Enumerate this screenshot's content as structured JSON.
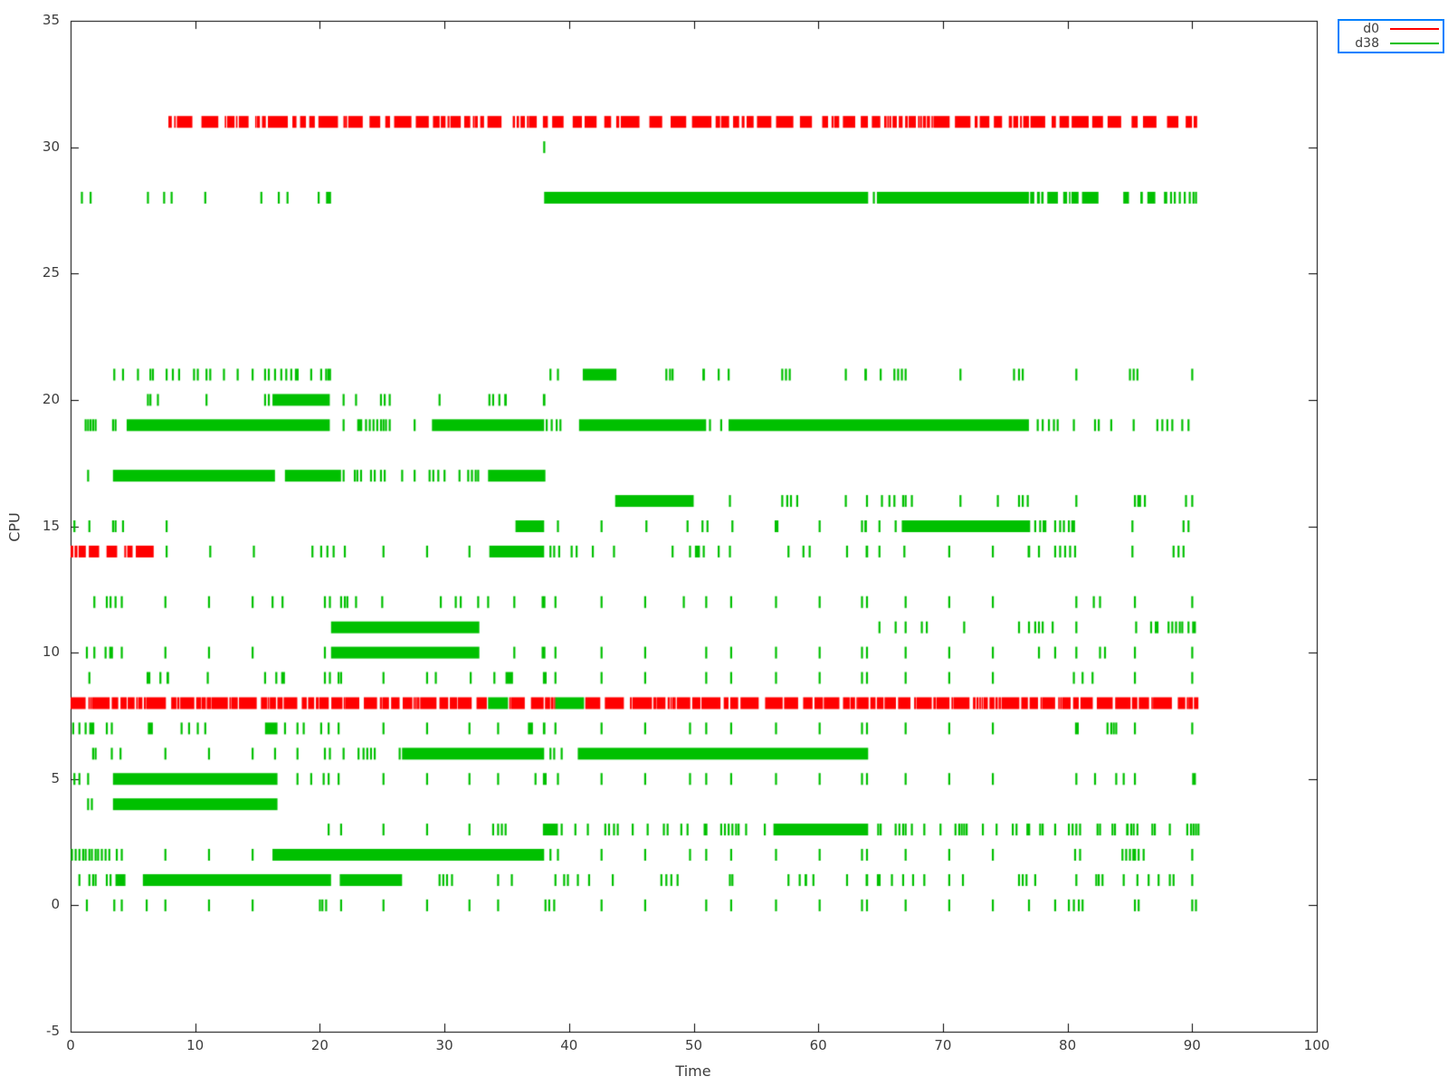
{
  "chart_data": {
    "type": "scatter",
    "marker": "vertical-interval-ticks",
    "title": "",
    "xlabel": "Time",
    "ylabel": "CPU",
    "xlim": [
      0,
      100
    ],
    "ylim": [
      -5,
      35
    ],
    "xticks": [
      0,
      10,
      20,
      30,
      40,
      50,
      60,
      70,
      80,
      90,
      100
    ],
    "yticks": [
      -5,
      0,
      5,
      10,
      15,
      20,
      25,
      30,
      35
    ],
    "grid": false,
    "legend_position": "outside-top-right",
    "legend_border_color": "#0080ff",
    "axis_color": "#000000",
    "series": [
      {
        "name": "d0",
        "color": "#ff0000"
      },
      {
        "name": "d38",
        "color": "#00c000"
      }
    ],
    "rows": [
      {
        "cpu": 31,
        "series": "d0",
        "dense": [
          [
            7.85,
            90.4,
            0.65
          ]
        ]
      },
      {
        "cpu": 30,
        "series": "d38",
        "ticks": [
          38.0
        ]
      },
      {
        "cpu": 28,
        "series": "d38",
        "ticks": [
          0.9,
          1.6,
          6.2,
          7.5,
          8.1,
          10.8,
          15.3,
          16.7,
          17.4,
          19.9,
          [
            20.5,
            20.9
          ],
          64.45,
          88.3,
          88.6,
          89.0,
          89.4,
          89.8,
          90.1,
          90.3
        ],
        "solid": [
          [
            38.0,
            64.0
          ],
          [
            64.7,
            76.9
          ]
        ],
        "dense": [
          [
            77.0,
            88.0,
            0.45
          ]
        ]
      },
      {
        "cpu": 21,
        "series": "d38",
        "ticks": [
          3.5,
          4.2,
          5.4,
          6.4,
          6.6,
          7.7,
          8.2,
          8.7,
          9.9,
          10.2,
          10.9,
          11.2,
          12.3,
          13.4,
          14.6,
          15.6,
          15.9,
          16.4,
          16.9,
          17.3,
          17.7,
          [
            18.0,
            18.3
          ],
          19.3,
          20.1,
          20.5,
          [
            20.6,
            20.9
          ],
          38.5,
          39.1,
          47.8,
          48.1,
          48.3,
          [
            50.7,
            50.9
          ],
          52.0,
          52.8,
          57.1,
          57.4,
          57.7,
          62.2,
          [
            63.7,
            63.9
          ],
          65.0,
          66.1,
          66.4,
          66.7,
          67.0,
          71.4,
          75.7,
          76.1,
          76.4,
          80.7,
          85.0,
          85.3,
          85.6,
          90.0
        ],
        "solid": [
          [
            41.1,
            43.8
          ]
        ]
      },
      {
        "cpu": 20,
        "series": "d38",
        "ticks": [
          6.2,
          6.4,
          7.0,
          10.9,
          15.6,
          15.9,
          21.9,
          22.9,
          24.9,
          25.2,
          25.6,
          29.6,
          33.6,
          33.9,
          34.4,
          [
            34.8,
            35.0
          ],
          [
            37.9,
            38.1
          ]
        ],
        "solid": [
          [
            16.2,
            20.8
          ]
        ]
      },
      {
        "cpu": 19,
        "series": "d38",
        "ticks": [
          1.2,
          1.4,
          1.6,
          1.8,
          2.0,
          3.4,
          3.6,
          21.9,
          [
            23.0,
            23.4
          ],
          23.7,
          24.0,
          24.3,
          24.6,
          24.9,
          25.1,
          25.3,
          25.6,
          27.6,
          38.2,
          38.6,
          39.0,
          39.3,
          51.3,
          52.2,
          77.6,
          78.0,
          78.5,
          78.9,
          79.2,
          80.5,
          82.2,
          82.5,
          83.5,
          85.3,
          87.2,
          87.6,
          88.0,
          88.4,
          89.2,
          89.7
        ],
        "solid": [
          [
            4.5,
            20.8
          ],
          [
            29.0,
            38.0
          ],
          [
            40.8,
            51.0
          ],
          [
            52.8,
            76.9
          ]
        ]
      },
      {
        "cpu": 17,
        "series": "d38",
        "ticks": [
          1.4,
          21.9,
          22.8,
          23.0,
          23.3,
          24.1,
          24.4,
          24.9,
          25.2,
          26.6,
          27.6,
          28.8,
          29.1,
          29.5,
          30.0,
          31.2,
          31.9,
          32.2,
          32.5,
          32.7
        ],
        "solid": [
          [
            3.4,
            16.4
          ],
          [
            17.2,
            21.7
          ],
          [
            33.5,
            38.1
          ]
        ]
      },
      {
        "cpu": 16,
        "series": "d38",
        "ticks": [
          52.9,
          57.1,
          57.5,
          57.8,
          58.3,
          62.2,
          63.9,
          65.1,
          65.7,
          66.1,
          66.8,
          67.0,
          67.5,
          71.4,
          74.4,
          76.1,
          76.4,
          76.8,
          80.7,
          85.4,
          [
            85.6,
            85.9
          ],
          86.2,
          89.5,
          90.0
        ],
        "solid": [
          [
            43.7,
            50.0
          ]
        ]
      },
      {
        "cpu": 15,
        "series": "d38",
        "ticks": [
          0.3,
          1.5,
          3.4,
          3.6,
          4.2,
          7.7,
          39.1,
          42.6,
          46.2,
          49.5,
          50.7,
          51.1,
          53.1,
          [
            56.5,
            56.8
          ],
          60.1,
          63.5,
          [
            63.7,
            63.9
          ],
          64.9,
          66.2,
          77.4,
          77.8,
          [
            78.0,
            78.3
          ],
          79.0,
          79.4,
          79.7,
          80.1,
          [
            80.3,
            80.6
          ],
          85.2,
          89.3,
          89.7
        ],
        "solid": [
          [
            35.7,
            38.0
          ],
          [
            66.7,
            77.0
          ]
        ]
      },
      {
        "cpu": 14,
        "series": "d0",
        "dense": [
          [
            0.0,
            7.55,
            0.7
          ]
        ]
      },
      {
        "cpu": 14,
        "series": "d38",
        "ticks": [
          7.7,
          11.2,
          14.7,
          19.4,
          20.1,
          20.6,
          21.1,
          22.0,
          25.1,
          28.6,
          32.0,
          38.5,
          38.8,
          39.2,
          40.2,
          40.6,
          41.9,
          43.6,
          48.3,
          49.7,
          [
            50.1,
            50.5
          ],
          50.8,
          52.0,
          52.9,
          57.6,
          58.8,
          59.3,
          62.3,
          [
            63.8,
            64.0
          ],
          64.9,
          66.9,
          70.5,
          74.0,
          [
            76.8,
            77.0
          ],
          77.7,
          79.0,
          79.4,
          79.8,
          80.2,
          80.6,
          85.2,
          88.5,
          88.9,
          89.3
        ],
        "solid": [
          [
            33.6,
            38.0
          ]
        ]
      },
      {
        "cpu": 12,
        "series": "d38",
        "ticks": [
          1.9,
          2.9,
          3.2,
          3.6,
          4.1,
          7.6,
          11.1,
          14.6,
          16.2,
          17.0,
          20.4,
          20.8,
          21.7,
          22.0,
          22.2,
          22.9,
          25.0,
          29.7,
          30.9,
          31.3,
          32.7,
          33.5,
          35.6,
          [
            37.8,
            38.1
          ],
          38.9,
          42.6,
          46.1,
          49.2,
          51.0,
          53.0,
          56.6,
          60.1,
          63.5,
          63.9,
          67.0,
          70.5,
          74.0,
          80.7,
          82.1,
          82.6,
          85.4,
          90.0
        ]
      },
      {
        "cpu": 11,
        "series": "d38",
        "ticks": [
          64.9,
          66.2,
          67.0,
          68.3,
          68.7,
          71.7,
          76.1,
          76.9,
          77.4,
          77.7,
          78.0,
          78.8,
          80.7,
          85.5,
          86.7,
          [
            87.0,
            87.3
          ],
          88.1,
          88.4,
          88.7,
          89.0,
          89.2,
          89.7,
          [
            90.0,
            90.3
          ]
        ],
        "solid": [
          [
            20.9,
            32.8
          ]
        ]
      },
      {
        "cpu": 10,
        "series": "d38",
        "ticks": [
          1.3,
          1.9,
          2.8,
          [
            3.1,
            3.4
          ],
          4.1,
          7.6,
          11.1,
          14.6,
          20.4,
          35.6,
          [
            37.8,
            38.1
          ],
          38.9,
          42.6,
          46.1,
          51.0,
          53.0,
          56.6,
          60.1,
          63.5,
          63.9,
          67.0,
          70.5,
          74.0,
          77.7,
          79.0,
          80.7,
          82.6,
          83.0,
          85.4,
          90.0
        ],
        "solid": [
          [
            20.9,
            32.8
          ]
        ]
      },
      {
        "cpu": 9,
        "series": "d38",
        "ticks": [
          1.5,
          [
            6.1,
            6.4
          ],
          7.2,
          [
            7.7,
            7.9
          ],
          11.0,
          15.6,
          16.5,
          [
            16.9,
            17.2
          ],
          20.4,
          20.8,
          21.5,
          21.7,
          25.1,
          28.6,
          29.3,
          32.1,
          34.0,
          [
            34.9,
            35.5
          ],
          [
            37.9,
            38.2
          ],
          38.9,
          42.6,
          46.1,
          51.0,
          53.0,
          56.6,
          60.1,
          63.5,
          63.9,
          67.0,
          70.5,
          74.0,
          80.5,
          81.2,
          82.0,
          85.4,
          90.0
        ]
      },
      {
        "cpu": 8,
        "series": "d0",
        "dense": [
          [
            0.0,
            33.4,
            0.82
          ],
          [
            35.2,
            38.8,
            0.78
          ],
          [
            41.3,
            90.5,
            0.82
          ]
        ]
      },
      {
        "cpu": 8,
        "series": "d38",
        "solid": [
          [
            33.5,
            35.1
          ],
          [
            38.9,
            41.2
          ]
        ]
      },
      {
        "cpu": 7,
        "series": "d38",
        "ticks": [
          0.2,
          0.7,
          1.2,
          [
            1.5,
            1.9
          ],
          2.9,
          3.3,
          [
            6.2,
            6.6
          ],
          8.9,
          9.5,
          10.2,
          10.8,
          17.2,
          18.2,
          18.7,
          20.1,
          20.7,
          21.5,
          25.1,
          28.6,
          32.0,
          34.3,
          [
            36.7,
            37.1
          ],
          [
            37.9,
            38.1
          ],
          38.9,
          42.6,
          46.1,
          49.7,
          51.0,
          53.0,
          56.6,
          60.1,
          63.5,
          63.9,
          67.0,
          70.5,
          74.0,
          [
            80.6,
            80.9
          ],
          83.2,
          83.5,
          83.7,
          83.9,
          85.4,
          90.0
        ],
        "solid": [
          [
            15.6,
            16.6
          ]
        ]
      },
      {
        "cpu": 6,
        "series": "d38",
        "ticks": [
          1.8,
          2.0,
          3.3,
          4.0,
          7.6,
          11.1,
          14.6,
          16.4,
          18.2,
          20.4,
          20.8,
          21.9,
          23.1,
          23.5,
          23.8,
          24.1,
          24.4,
          26.4,
          38.5,
          38.8,
          39.4
        ],
        "solid": [
          [
            26.6,
            38.0
          ],
          [
            40.7,
            64.0
          ]
        ]
      },
      {
        "cpu": 5,
        "series": "d38",
        "ticks": [
          0.3,
          0.7,
          1.4,
          18.2,
          19.3,
          20.3,
          20.7,
          21.5,
          25.1,
          28.6,
          32.0,
          34.3,
          37.3,
          [
            37.9,
            38.2
          ],
          39.1,
          42.6,
          46.1,
          49.7,
          51.0,
          53.0,
          56.6,
          60.1,
          63.5,
          63.9,
          67.0,
          70.5,
          74.0,
          80.7,
          82.2,
          83.9,
          84.5,
          85.4,
          [
            90.0,
            90.3
          ]
        ],
        "solid": [
          [
            3.4,
            16.6
          ]
        ]
      },
      {
        "cpu": 4,
        "series": "d38",
        "ticks": [
          1.4,
          1.7
        ],
        "solid": [
          [
            3.4,
            16.6
          ]
        ]
      },
      {
        "cpu": 3,
        "series": "d38",
        "ticks": [
          20.7,
          21.7,
          25.1,
          28.6,
          32.0,
          33.9,
          34.3,
          34.6,
          34.9,
          39.4,
          40.5,
          41.5,
          42.9,
          43.2,
          43.6,
          43.9,
          45.1,
          46.3,
          47.6,
          47.9,
          49.0,
          49.5,
          [
            50.8,
            51.1
          ],
          52.2,
          52.5,
          52.8,
          53.1,
          53.4,
          53.6,
          54.2,
          55.7,
          64.8,
          65.0,
          66.2,
          66.5,
          66.8,
          67.0,
          67.5,
          68.5,
          69.8,
          71.0,
          71.3,
          71.5,
          71.7,
          71.9,
          73.2,
          74.3,
          75.6,
          75.9,
          [
            76.7,
            77.0
          ],
          77.8,
          78.0,
          79.0,
          80.1,
          80.4,
          80.7,
          81.0,
          82.4,
          82.6,
          83.6,
          83.8,
          [
            84.7,
            84.9
          ],
          85.1,
          85.3,
          85.6,
          86.8,
          87.0,
          88.2,
          89.6,
          89.9,
          90.1,
          90.3,
          90.5
        ],
        "solid": [
          [
            37.9,
            39.1
          ],
          [
            56.4,
            64.0
          ]
        ]
      },
      {
        "cpu": 2,
        "series": "d38",
        "ticks": [
          0.1,
          0.4,
          0.7,
          1.0,
          1.2,
          1.5,
          1.7,
          2.0,
          2.2,
          2.5,
          2.8,
          3.1,
          3.7,
          4.1,
          7.6,
          11.1,
          14.6,
          38.5,
          39.1,
          42.6,
          46.1,
          49.7,
          51.0,
          53.0,
          56.6,
          60.1,
          63.5,
          63.9,
          67.0,
          70.5,
          74.0,
          80.6,
          81.0,
          84.4,
          84.7,
          85.0,
          [
            85.2,
            85.5
          ],
          85.7,
          86.1,
          90.0
        ],
        "solid": [
          [
            16.2,
            38.0
          ]
        ]
      },
      {
        "cpu": 1,
        "series": "d38",
        "ticks": [
          0.7,
          1.5,
          1.8,
          2.0,
          2.9,
          3.2,
          [
            3.6,
            4.4
          ],
          29.6,
          29.9,
          30.2,
          30.6,
          34.3,
          35.4,
          38.9,
          39.6,
          39.9,
          40.7,
          41.6,
          43.5,
          47.4,
          47.8,
          48.2,
          48.7,
          52.9,
          53.1,
          57.6,
          58.5,
          [
            58.9,
            59.1
          ],
          59.6,
          62.3,
          [
            63.8,
            64.0
          ],
          [
            64.7,
            65.0
          ],
          65.9,
          66.8,
          67.6,
          68.5,
          70.5,
          71.6,
          76.1,
          76.4,
          76.7,
          77.4,
          80.7,
          82.3,
          82.5,
          82.8,
          84.5,
          85.6,
          86.5,
          87.3,
          88.2,
          88.5,
          90.0
        ],
        "solid": [
          [
            5.8,
            20.9
          ],
          [
            21.6,
            26.6
          ]
        ]
      },
      {
        "cpu": 0,
        "series": "d38",
        "ticks": [
          1.3,
          3.5,
          4.1,
          6.1,
          7.6,
          11.1,
          14.6,
          20.0,
          20.2,
          20.5,
          21.7,
          25.1,
          28.6,
          32.0,
          34.3,
          38.1,
          38.4,
          38.8,
          42.6,
          46.1,
          51.0,
          53.0,
          56.6,
          60.1,
          63.5,
          63.9,
          67.0,
          70.5,
          74.0,
          76.9,
          79.0,
          80.1,
          80.5,
          80.9,
          81.2,
          85.4,
          85.7,
          90.0,
          90.3
        ]
      }
    ]
  }
}
